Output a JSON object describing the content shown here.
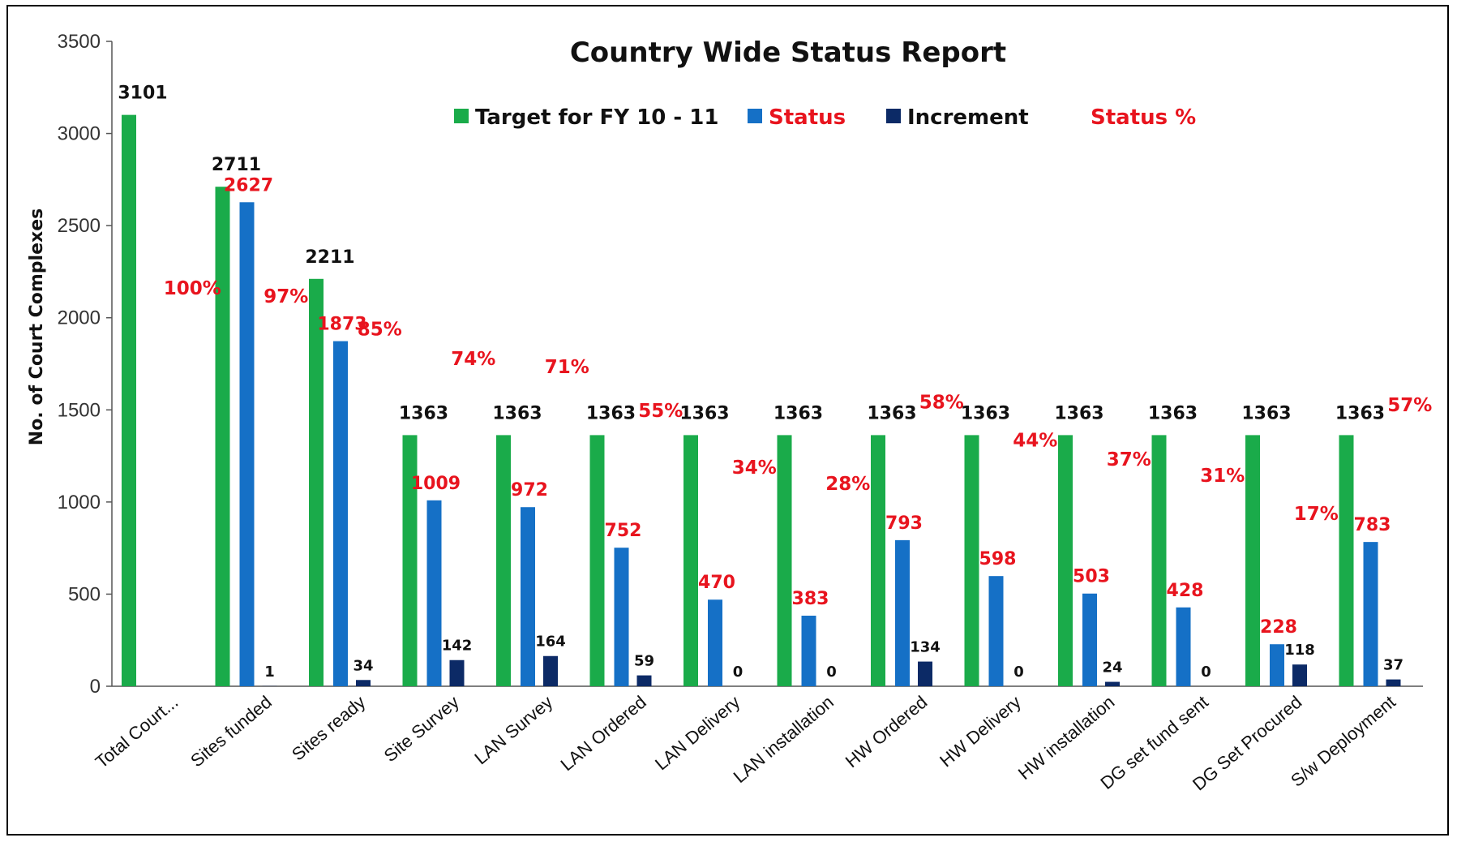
{
  "chart_data": {
    "type": "bar",
    "title": "Country Wide Status Report",
    "ylabel": "No. of Court Complexes",
    "xlabel": "",
    "ylim": [
      0,
      3500
    ],
    "yticks": [
      0,
      500,
      1000,
      1500,
      2000,
      2500,
      3000,
      3500
    ],
    "categories": [
      "Total Court...",
      "Sites funded",
      "Sites ready",
      "Site Survey",
      "LAN Survey",
      "LAN Ordered",
      "LAN Delivery",
      "LAN installation",
      "HW Ordered",
      "HW Delivery",
      "HW installation",
      "DG set fund sent",
      "DG Set Procured",
      "S/w Deployment"
    ],
    "series": [
      {
        "name": "Target for FY 10 - 11",
        "color": "#1aab4a",
        "values": [
          3101,
          2711,
          2211,
          1363,
          1363,
          1363,
          1363,
          1363,
          1363,
          1363,
          1363,
          1363,
          1363,
          1363
        ]
      },
      {
        "name": "Status",
        "color": "#1570c6",
        "values": [
          null,
          2627,
          1873,
          1009,
          972,
          752,
          470,
          383,
          793,
          598,
          503,
          428,
          228,
          783
        ]
      },
      {
        "name": "Increment",
        "color": "#0c2a66",
        "values": [
          null,
          1,
          34,
          142,
          164,
          59,
          0,
          0,
          134,
          0,
          24,
          0,
          118,
          37
        ]
      }
    ],
    "status_percent": {
      "name": "Status %",
      "labels": [
        "100%",
        "97%",
        "85%",
        "74%",
        "71%",
        "55%",
        "34%",
        "28%",
        "58%",
        "44%",
        "37%",
        "31%",
        "17%",
        "57%"
      ],
      "values": [
        100,
        97,
        85,
        74,
        71,
        55,
        34,
        28,
        58,
        44,
        37,
        31,
        17,
        57
      ]
    },
    "legend_position": "top",
    "grid": false
  }
}
